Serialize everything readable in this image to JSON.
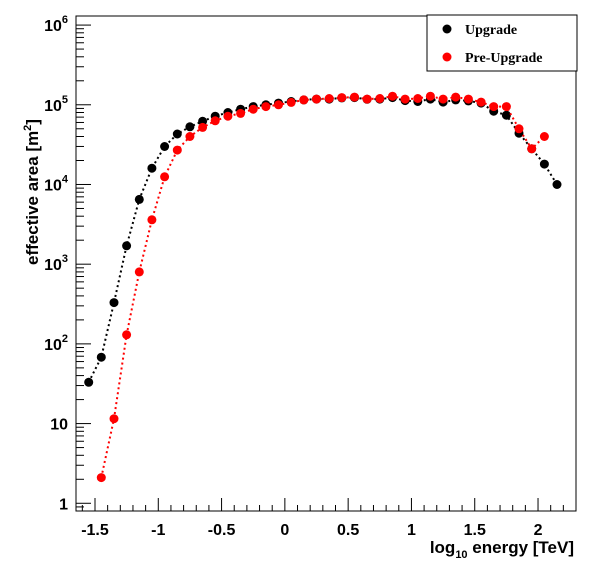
{
  "chart_data": {
    "type": "scatter",
    "xlabel": "log10 energy [TeV]",
    "ylabel": "effective area [m2]",
    "xlim": [
      -1.65,
      2.3
    ],
    "ylim": [
      0.8,
      1300000
    ],
    "yscale": "log",
    "grid": false,
    "legend_position": "top-right",
    "x_ticks": [
      {
        "value": -1.5,
        "label": "-1.5"
      },
      {
        "value": -1,
        "label": "-1"
      },
      {
        "value": -0.5,
        "label": "-0.5"
      },
      {
        "value": 0,
        "label": "0"
      },
      {
        "value": 0.5,
        "label": "0.5"
      },
      {
        "value": 1,
        "label": "1"
      },
      {
        "value": 1.5,
        "label": "1.5"
      },
      {
        "value": 2,
        "label": "2"
      }
    ],
    "y_ticks": [
      {
        "value": 1,
        "label": "1"
      },
      {
        "value": 10,
        "label": "10"
      },
      {
        "value": 100,
        "label": "10^2"
      },
      {
        "value": 1000,
        "label": "10^3"
      },
      {
        "value": 10000,
        "label": "10^4"
      },
      {
        "value": 100000,
        "label": "10^5"
      },
      {
        "value": 1000000,
        "label": "10^6"
      }
    ],
    "series": [
      {
        "name": "Upgrade",
        "color": "#000000",
        "x": [
          -1.55,
          -1.45,
          -1.35,
          -1.25,
          -1.15,
          -1.05,
          -0.95,
          -0.85,
          -0.75,
          -0.65,
          -0.55,
          -0.45,
          -0.35,
          -0.25,
          -0.15,
          -0.05,
          0.05,
          0.15,
          0.25,
          0.35,
          0.45,
          0.55,
          0.65,
          0.75,
          0.85,
          0.95,
          1.05,
          1.15,
          1.25,
          1.35,
          1.45,
          1.55,
          1.65,
          1.75,
          1.85,
          1.95,
          2.05,
          2.15
        ],
        "y": [
          33,
          68,
          330,
          1700,
          6500,
          16000,
          30000,
          43000,
          53000,
          62000,
          72000,
          80000,
          88000,
          95000,
          100000,
          105000,
          110000,
          115000,
          118000,
          118000,
          122000,
          123000,
          117000,
          118000,
          123000,
          113000,
          110000,
          118000,
          108000,
          115000,
          112000,
          105000,
          83000,
          74000,
          44000,
          28000,
          18000,
          10000
        ]
      },
      {
        "name": "Pre-Upgrade",
        "color": "#ff0000",
        "x": [
          -1.45,
          -1.35,
          -1.25,
          -1.15,
          -1.05,
          -0.95,
          -0.85,
          -0.75,
          -0.65,
          -0.55,
          -0.45,
          -0.35,
          -0.25,
          -0.15,
          -0.05,
          0.05,
          0.15,
          0.25,
          0.35,
          0.45,
          0.55,
          0.65,
          0.75,
          0.85,
          0.95,
          1.05,
          1.15,
          1.25,
          1.35,
          1.45,
          1.55,
          1.65,
          1.75,
          1.85,
          1.95,
          2.05
        ],
        "y": [
          2.1,
          11.5,
          130,
          800,
          3600,
          12500,
          27000,
          40000,
          52000,
          63000,
          72000,
          78000,
          88000,
          95000,
          100000,
          107000,
          115000,
          118000,
          120000,
          123000,
          125000,
          118000,
          120000,
          128000,
          118000,
          120000,
          128000,
          118000,
          125000,
          118000,
          108000,
          95000,
          95000,
          50000,
          28000,
          40000
        ]
      }
    ]
  }
}
